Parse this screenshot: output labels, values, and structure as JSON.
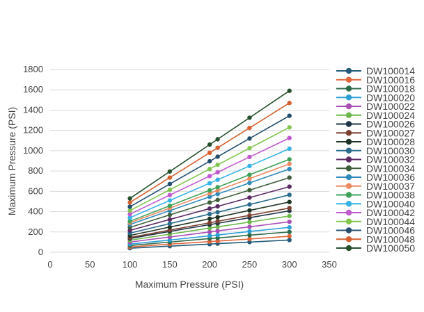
{
  "chart_data": {
    "type": "line",
    "xlabel": "Maximum Pressure (PSI)",
    "ylabel": "Maximum Pressure (PSI)",
    "xlim": [
      0,
      350
    ],
    "ylim": [
      0,
      1800
    ],
    "xticks": [
      0,
      50,
      100,
      150,
      200,
      250,
      300,
      350
    ],
    "yticks": [
      0,
      200,
      400,
      600,
      800,
      1000,
      1200,
      1400,
      1600,
      1800
    ],
    "grid": "horizontal",
    "legend_position": "right",
    "x": [
      100,
      150,
      200,
      210,
      250,
      300
    ],
    "series": [
      {
        "name": "DW100014",
        "color": "#245a7a",
        "values": [
          40,
          60,
          80,
          85,
          100,
          120
        ]
      },
      {
        "name": "DW100016",
        "color": "#e0663a",
        "values": [
          52,
          80,
          105,
          110,
          130,
          158
        ]
      },
      {
        "name": "DW100018",
        "color": "#2e6b4a",
        "values": [
          66,
          100,
          135,
          140,
          168,
          200
        ]
      },
      {
        "name": "DW100020",
        "color": "#2a9fd6",
        "values": [
          80,
          120,
          162,
          170,
          205,
          245
        ]
      },
      {
        "name": "DW100022",
        "color": "#a94fb5",
        "values": [
          100,
          150,
          200,
          210,
          250,
          300
        ]
      },
      {
        "name": "DW100024",
        "color": "#6cb84a",
        "values": [
          118,
          178,
          238,
          250,
          297,
          357
        ]
      },
      {
        "name": "DW100026",
        "color": "#1e3345",
        "values": [
          135,
          205,
          272,
          285,
          340,
          408
        ]
      },
      {
        "name": "DW100027",
        "color": "#7d4030",
        "values": [
          145,
          218,
          290,
          305,
          363,
          435
        ]
      },
      {
        "name": "DW100028",
        "color": "#1f3524",
        "values": [
          165,
          248,
          330,
          345,
          412,
          495
        ]
      },
      {
        "name": "DW100030",
        "color": "#2a6d8c",
        "values": [
          188,
          282,
          376,
          395,
          470,
          565
        ]
      },
      {
        "name": "DW100032",
        "color": "#5b2a63",
        "values": [
          215,
          323,
          430,
          452,
          538,
          646
        ]
      },
      {
        "name": "DW100034",
        "color": "#3f5e3a",
        "values": [
          245,
          368,
          490,
          515,
          612,
          735
        ]
      },
      {
        "name": "DW100036",
        "color": "#2f8bbb",
        "values": [
          273,
          410,
          546,
          573,
          683,
          820
        ]
      },
      {
        "name": "DW100037",
        "color": "#ec8a62",
        "values": [
          290,
          435,
          580,
          609,
          725,
          870
        ]
      },
      {
        "name": "DW100038",
        "color": "#3fa25a",
        "values": [
          305,
          458,
          610,
          641,
          763,
          915
        ]
      },
      {
        "name": "DW100040",
        "color": "#37b3e6",
        "values": [
          340,
          510,
          680,
          714,
          850,
          1020
        ]
      },
      {
        "name": "DW100042",
        "color": "#c15ad0",
        "values": [
          375,
          563,
          750,
          788,
          938,
          1125
        ]
      },
      {
        "name": "DW100044",
        "color": "#82c64f",
        "values": [
          410,
          615,
          820,
          861,
          1025,
          1230
        ]
      },
      {
        "name": "DW100046",
        "color": "#244e6e",
        "values": [
          448,
          672,
          896,
          941,
          1120,
          1344
        ]
      },
      {
        "name": "DW100048",
        "color": "#d7602e",
        "values": [
          490,
          735,
          980,
          1029,
          1225,
          1470
        ]
      },
      {
        "name": "DW100050",
        "color": "#264f2c",
        "values": [
          530,
          795,
          1060,
          1113,
          1325,
          1590
        ]
      }
    ]
  }
}
